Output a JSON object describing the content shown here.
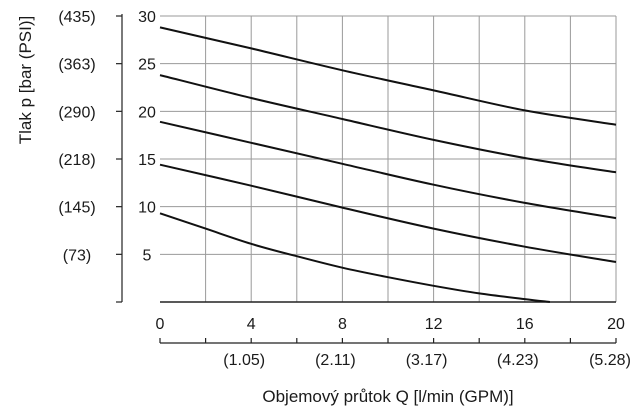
{
  "chart_data": {
    "type": "line",
    "xlabel": "Objemový průtok Q [l/min (GPM)]",
    "ylabel": "Tlak p [bar (PSI)]",
    "xlim": [
      0,
      20
    ],
    "ylim": [
      0,
      30
    ],
    "x_ticks": [
      0,
      4,
      8,
      12,
      16,
      20
    ],
    "x_ticks_secondary": [
      {
        "x": 4,
        "label": "(1.05)"
      },
      {
        "x": 8,
        "label": "(2.11)"
      },
      {
        "x": 12,
        "label": "(3.17)"
      },
      {
        "x": 16,
        "label": "(4.23)"
      },
      {
        "x": 20,
        "label": "(5.28)"
      }
    ],
    "y_ticks": [
      5,
      10,
      15,
      20,
      25,
      30
    ],
    "y_ticks_secondary": [
      {
        "y": 5,
        "label": "(73)"
      },
      {
        "y": 10,
        "label": "(145)"
      },
      {
        "y": 15,
        "label": "(218)"
      },
      {
        "y": 20,
        "label": "(290)"
      },
      {
        "y": 25,
        "label": "(363)"
      },
      {
        "y": 30,
        "label": "(435)"
      }
    ],
    "grid": true,
    "series": [
      {
        "x": [
          0,
          2,
          4,
          6,
          8,
          10,
          12,
          14,
          16,
          17.1
        ],
        "values": [
          9.3,
          7.7,
          6.1,
          4.8,
          3.6,
          2.6,
          1.7,
          0.9,
          0.3,
          0
        ]
      },
      {
        "x": [
          0,
          4,
          8,
          12,
          16,
          20
        ],
        "values": [
          14.4,
          12.2,
          9.9,
          7.7,
          5.8,
          4.2
        ]
      },
      {
        "x": [
          0,
          4,
          8,
          12,
          16,
          20
        ],
        "values": [
          18.9,
          16.7,
          14.5,
          12.3,
          10.4,
          8.8
        ]
      },
      {
        "x": [
          0,
          4,
          8,
          12,
          16,
          20
        ],
        "values": [
          23.8,
          21.4,
          19.2,
          17.0,
          15.1,
          13.6
        ]
      },
      {
        "x": [
          0,
          4,
          8,
          12,
          16,
          20
        ],
        "values": [
          28.8,
          26.6,
          24.3,
          22.2,
          20.1,
          18.6
        ]
      }
    ]
  }
}
